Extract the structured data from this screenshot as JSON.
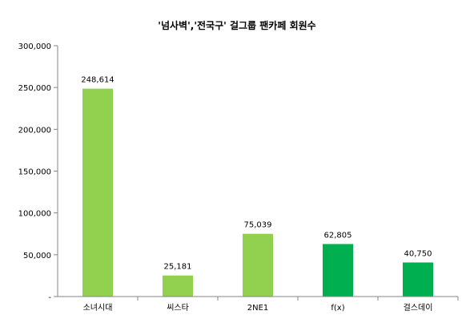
{
  "chart_data": {
    "type": "bar",
    "title": "'넘사벽','전국구' 걸그룹 팬카페 회원수",
    "xlabel": "",
    "ylabel": "",
    "categories": [
      "소녀시대",
      "씨스타",
      "2NE1",
      "f(x)",
      "걸스데이"
    ],
    "values": [
      248614,
      25181,
      75039,
      62805,
      40750
    ],
    "value_labels": [
      "248,614",
      "25,181",
      "75,039",
      "62,805",
      "40,750"
    ],
    "bar_colors": [
      "#92d050",
      "#92d050",
      "#92d050",
      "#00b050",
      "#00b050"
    ],
    "ylim": [
      0,
      300000
    ],
    "yticks": [
      0,
      50000,
      100000,
      150000,
      200000,
      250000,
      300000
    ],
    "ytick_labels": [
      "-",
      "50,000",
      "100,000",
      "150,000",
      "200,000",
      "250,000",
      "300,000"
    ],
    "grid": false,
    "legend": "none"
  },
  "colors": {
    "axis": "#868686",
    "light_green": "#92d050",
    "dark_green": "#00b050"
  }
}
